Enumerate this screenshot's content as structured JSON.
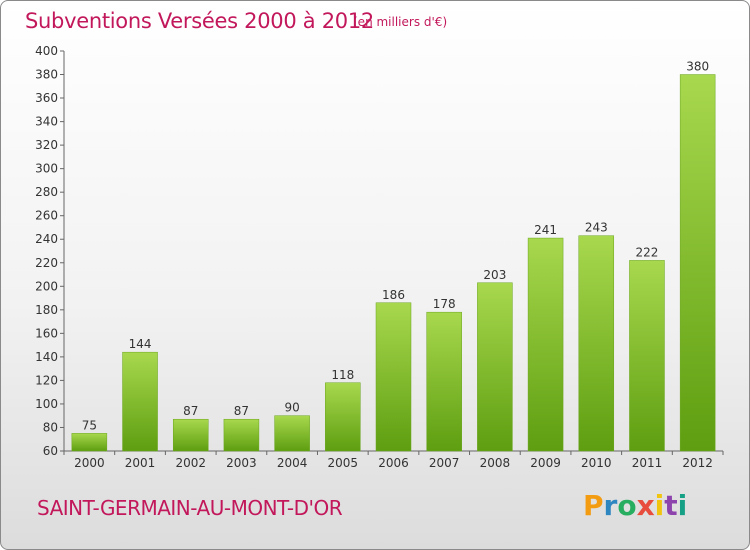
{
  "title": "Subventions Versées 2000 à 2012",
  "subtitle": "(en milliers d'€)",
  "place": "SAINT-GERMAIN-AU-MONT-D'OR",
  "logo": {
    "letters": [
      "P",
      "r",
      "o",
      "x",
      "i",
      "t",
      "i"
    ],
    "colors": [
      "#f39c12",
      "#2e86c1",
      "#27ae60",
      "#e74c3c",
      "#f1c40f",
      "#8e44ad",
      "#16a085"
    ]
  },
  "colors": {
    "title": "#c2185b",
    "bar_light": "#a8d84e",
    "bar_dark": "#5e9e10"
  },
  "chart_data": {
    "type": "bar",
    "categories": [
      "2000",
      "2001",
      "2002",
      "2003",
      "2004",
      "2005",
      "2006",
      "2007",
      "2008",
      "2009",
      "2010",
      "2011",
      "2012"
    ],
    "values": [
      75,
      144,
      87,
      87,
      90,
      118,
      186,
      178,
      203,
      241,
      243,
      222,
      380
    ],
    "title": "Subventions Versées 2000 à 2012",
    "xlabel": "",
    "ylabel": "",
    "ylim": [
      60,
      400
    ],
    "yticks": [
      60,
      80,
      100,
      120,
      140,
      160,
      180,
      200,
      220,
      240,
      260,
      280,
      300,
      320,
      340,
      360,
      380,
      400
    ],
    "grid": false,
    "legend": "none"
  }
}
